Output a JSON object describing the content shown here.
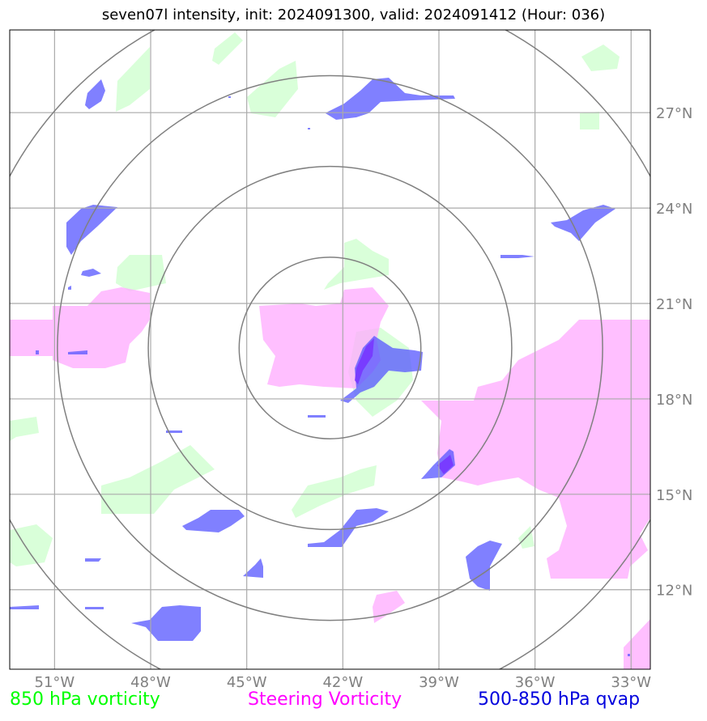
{
  "title": "seven07l intensity, init: 2024091300, valid: 2024091412 (Hour: 036)",
  "map": {
    "lon_range": [
      -52.4,
      -32.4
    ],
    "lat_range": [
      9.5,
      29.6
    ],
    "lon_ticks": [
      -51,
      -48,
      -45,
      -42,
      -39,
      -36,
      -33
    ],
    "lon_tick_labels": [
      "51°W",
      "48°W",
      "45°W",
      "42°W",
      "39°W",
      "36°W",
      "33°W"
    ],
    "lat_ticks": [
      12,
      15,
      18,
      21,
      24,
      27
    ],
    "lat_tick_labels": [
      "12°N",
      "15°N",
      "18°N",
      "21°N",
      "24°N",
      "27°N"
    ],
    "center": {
      "lon": -42.4,
      "lat": 19.6
    },
    "range_rings": 4,
    "colors": {
      "vorticity_850": "#ccffcc",
      "steering_vorticity": "#ffaaff",
      "qvap_500_850": "#5555ff",
      "grid": "#aaaaaa",
      "rings": "#808080"
    }
  },
  "legend": {
    "vorticity": "850 hPa vorticity",
    "steering": "Steering Vorticity",
    "qvap": "500-850 hPa qvap"
  }
}
